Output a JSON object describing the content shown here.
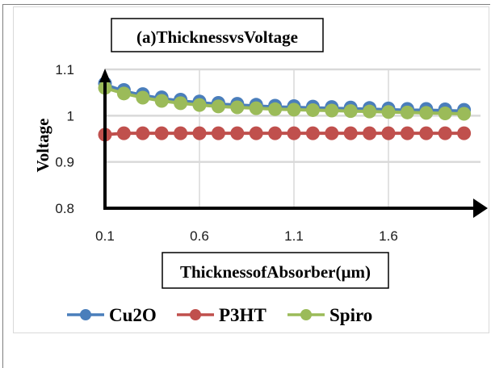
{
  "chart_data": {
    "type": "line",
    "title": "(a)ThicknessvsVoltage",
    "xlabel": "ThicknessofAbsorber(µm)",
    "ylabel": "Voltage",
    "x": [
      0.1,
      0.2,
      0.3,
      0.4,
      0.5,
      0.6,
      0.7,
      0.8,
      0.9,
      1.0,
      1.1,
      1.2,
      1.3,
      1.4,
      1.5,
      1.6,
      1.7,
      1.8,
      1.9,
      2.0
    ],
    "xlim": [
      0.1,
      2.05
    ],
    "ylim": [
      0.8,
      1.1
    ],
    "x_ticks": [
      0.1,
      0.6,
      1.1,
      1.6
    ],
    "x_tick_labels": [
      "0.1",
      "0.6",
      "1.1",
      "1.6"
    ],
    "y_ticks": [
      0.8,
      0.9,
      1.0,
      1.1
    ],
    "y_tick_labels": [
      "0.8",
      "0.9",
      "1",
      "1.1"
    ],
    "grid": true,
    "legend_position": "bottom",
    "series": [
      {
        "name": "Cu2O",
        "color": "#4a7ebb",
        "values": [
          1.067,
          1.053,
          1.044,
          1.037,
          1.032,
          1.028,
          1.025,
          1.023,
          1.021,
          1.019,
          1.018,
          1.017,
          1.016,
          1.015,
          1.014,
          1.013,
          1.012,
          1.012,
          1.011,
          1.01
        ]
      },
      {
        "name": "P3HT",
        "color": "#c0504d",
        "values": [
          0.959,
          0.962,
          0.962,
          0.962,
          0.962,
          0.962,
          0.962,
          0.962,
          0.962,
          0.962,
          0.962,
          0.962,
          0.962,
          0.962,
          0.962,
          0.962,
          0.962,
          0.962,
          0.962,
          0.962
        ]
      },
      {
        "name": "Spiro",
        "color": "#9bbb59",
        "values": [
          1.06,
          1.048,
          1.039,
          1.032,
          1.027,
          1.023,
          1.02,
          1.018,
          1.016,
          1.014,
          1.013,
          1.012,
          1.011,
          1.01,
          1.009,
          1.008,
          1.007,
          1.006,
          1.005,
          1.004
        ]
      }
    ]
  },
  "colors": {
    "gridline": "#d9d9d9",
    "axis": "#000000"
  }
}
